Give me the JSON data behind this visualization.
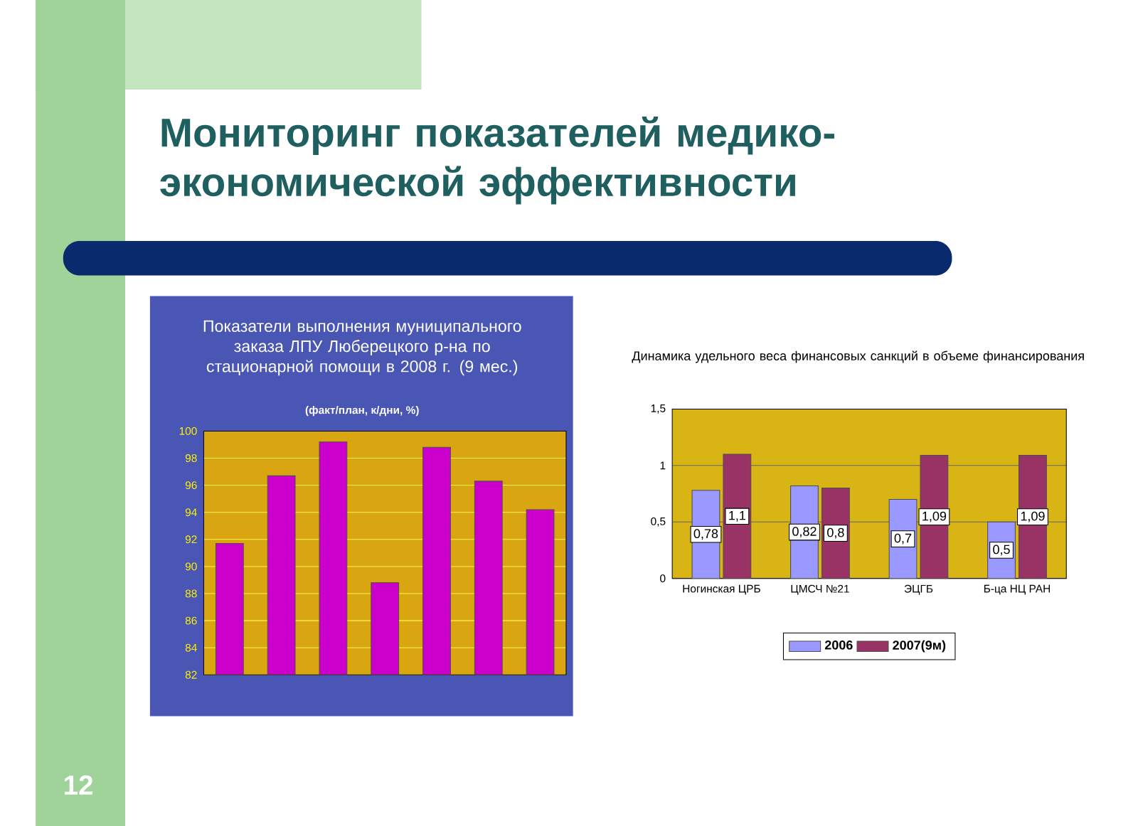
{
  "chart_data": [
    {
      "type": "other",
      "title": "Мониторинг показателей медико-экономической эффективности",
      "annotations": [
        "12"
      ]
    },
    {
      "type": "bar",
      "title": "Показатели выполнения муниципального заказа ЛПУ Люберецкого р-на по стационарной помощи в 2008 г. (9 мес.)",
      "subtitle": "(факт/план, к/дни, %)",
      "categories": [
        null,
        null,
        null,
        null,
        null,
        null,
        null
      ],
      "values": [
        91.7,
        96.7,
        99.2,
        88.8,
        98.8,
        96.3,
        94.2
      ],
      "color": "#cc00cc",
      "ylim": [
        82,
        100
      ],
      "yticks": [
        82,
        84,
        86,
        88,
        90,
        92,
        94,
        96,
        98,
        100
      ],
      "grid": "y"
    },
    {
      "type": "bar",
      "title": "Динамика удельного веса финансовых санкций в объеме финансирования",
      "categories": [
        "Ногинская ЦРБ",
        "ЦМСЧ №21",
        "ЭЦГБ",
        "Б-ца НЦ РАН"
      ],
      "series": [
        {
          "name": "2006",
          "color": "#9999ff",
          "values": [
            0.78,
            0.82,
            0.7,
            0.5
          ],
          "value_labels": [
            "0,78",
            "0,82",
            "0,7",
            "0,5"
          ]
        },
        {
          "name": "2007(9м)",
          "color": "#993366",
          "values": [
            1.1,
            0.8,
            1.09,
            1.09
          ],
          "value_labels": [
            "1,1",
            "0,8",
            "1,09",
            "1,09"
          ]
        }
      ],
      "ylim": [
        0,
        1.5
      ],
      "yticks": [
        0,
        {
          "value": 0.5,
          "label": "0,5"
        },
        1,
        {
          "value": 1.5,
          "label": "1,5"
        }
      ],
      "grid": "y",
      "legend": "bottom"
    }
  ]
}
